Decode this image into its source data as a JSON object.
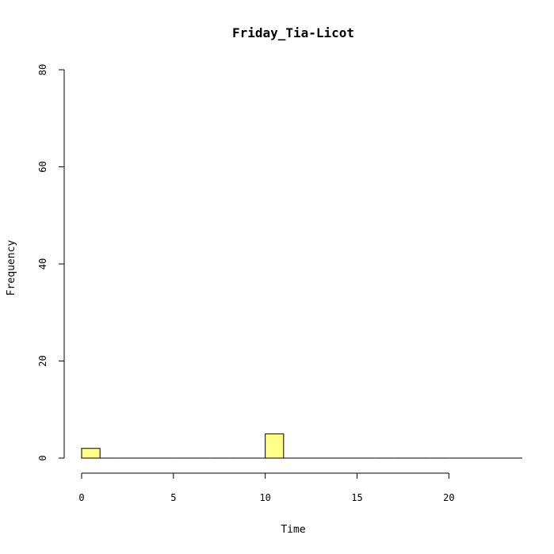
{
  "chart_data": {
    "type": "bar",
    "title": "Friday_Tia-Licot",
    "xlabel": "Time",
    "ylabel": "Frequency",
    "bin_width": 1,
    "bins": [
      {
        "start": 0,
        "end": 1,
        "count": 2
      },
      {
        "start": 1,
        "end": 2,
        "count": 0
      },
      {
        "start": 2,
        "end": 3,
        "count": 0
      },
      {
        "start": 3,
        "end": 4,
        "count": 0
      },
      {
        "start": 4,
        "end": 5,
        "count": 0
      },
      {
        "start": 5,
        "end": 6,
        "count": 0
      },
      {
        "start": 6,
        "end": 7,
        "count": 0
      },
      {
        "start": 7,
        "end": 8,
        "count": 0
      },
      {
        "start": 8,
        "end": 9,
        "count": 0
      },
      {
        "start": 9,
        "end": 10,
        "count": 0
      },
      {
        "start": 10,
        "end": 11,
        "count": 5
      },
      {
        "start": 11,
        "end": 12,
        "count": 0
      },
      {
        "start": 12,
        "end": 13,
        "count": 0
      },
      {
        "start": 13,
        "end": 14,
        "count": 0
      },
      {
        "start": 14,
        "end": 15,
        "count": 0
      },
      {
        "start": 15,
        "end": 16,
        "count": 0
      },
      {
        "start": 16,
        "end": 17,
        "count": 0
      },
      {
        "start": 17,
        "end": 18,
        "count": 0
      },
      {
        "start": 18,
        "end": 19,
        "count": 0
      },
      {
        "start": 19,
        "end": 20,
        "count": 0
      },
      {
        "start": 20,
        "end": 21,
        "count": 0
      },
      {
        "start": 21,
        "end": 22,
        "count": 0
      },
      {
        "start": 22,
        "end": 23,
        "count": 0
      },
      {
        "start": 23,
        "end": 24,
        "count": 0
      }
    ],
    "xlim": [
      0,
      24
    ],
    "ylim": [
      0,
      80
    ],
    "x_ticks": [
      "0",
      "5",
      "10",
      "15",
      "20"
    ],
    "y_ticks": [
      "0",
      "20",
      "40",
      "60",
      "80"
    ],
    "bar_color": "#FFFF88",
    "bar_outline": "#000000",
    "grid": false,
    "legend": "none"
  }
}
